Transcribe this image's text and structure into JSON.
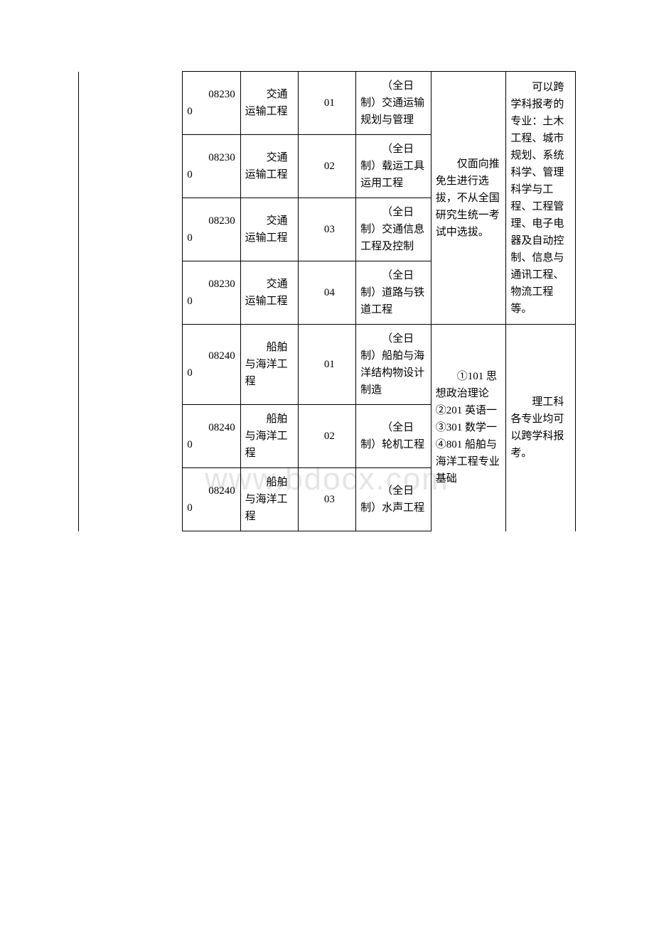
{
  "watermark_text": "www.bdocx.com",
  "watermark_color": "#e5e5e5",
  "border_color": "#000000",
  "text_color": "#000000",
  "background_color": "#ffffff",
  "font_size_pt": 11,
  "rows": [
    {
      "code": "082300",
      "major": "交通运输工程",
      "dir_code": "01",
      "dir_name": "（全日制）交通运输规划与管理"
    },
    {
      "code": "082300",
      "major": "交通运输工程",
      "dir_code": "02",
      "dir_name": "（全日制）载运工具运用工程"
    },
    {
      "code": "082300",
      "major": "交通运输工程",
      "dir_code": "03",
      "dir_name": "（全日制）交通信息工程及控制"
    },
    {
      "code": "082300",
      "major": "交通运输工程",
      "dir_code": "04",
      "dir_name": "（全日制）道路与铁道工程"
    },
    {
      "code": "082400",
      "major": "船舶与海洋工程",
      "dir_code": "01",
      "dir_name": "（全日制）船舶与海洋结构物设计制造"
    },
    {
      "code": "082400",
      "major": "船舶与海洋工程",
      "dir_code": "02",
      "dir_name": "（全日制）轮机工程"
    },
    {
      "code": "082400",
      "major": "船舶与海洋工程",
      "dir_code": "03",
      "dir_name": "（全日制）水声工程"
    }
  ],
  "exam_group1": "仅面向推免生进行选拔，不从全国研究生统一考试中选拔。",
  "note_group1": "可以跨学科报考的专业：土木工程、城市规划、系统科学、管理科学与工程、工程管理、电子电器及自动控制、信息与通讯工程、物流工程等。",
  "exam_group2": "①101 思想政治理论②201 英语一③301 数学一④801 船舶与海洋工程专业基础",
  "note_group2": "理工科各专业均可以跨学科报考。"
}
